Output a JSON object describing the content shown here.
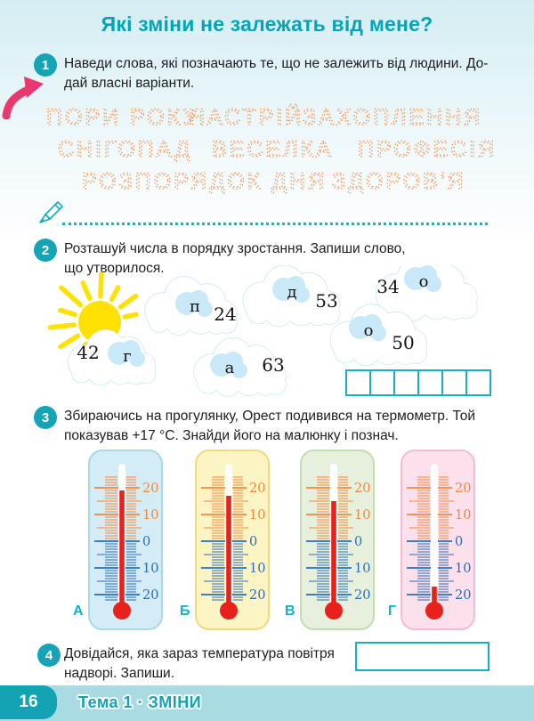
{
  "header": {
    "title": "Які зміни не залежать від мене?"
  },
  "task1": {
    "badge": "1",
    "line1": "Наведи слова, які позначають те, що не залежить від людини. До-",
    "line2": "дай власні варіанти.",
    "words": [
      "ПОРИ РОКУ",
      "НАСТРІЙ",
      "ЗАХОПЛЕННЯ",
      "СНІГОПАД",
      "ВЕСЕЛКА",
      "ПРОФЕСІЯ",
      "РОЗПОРЯДОК ДНЯ",
      "ЗДОРОВ'Я"
    ]
  },
  "task2": {
    "badge": "2",
    "line1": "Розташуй числа в порядку зростання. Запиши слово,",
    "line2": "що утворилося.",
    "clouds": [
      {
        "letter": "п",
        "number": "24"
      },
      {
        "letter": "д",
        "number": "53"
      },
      {
        "letter": "о",
        "number": "34"
      },
      {
        "letter": "о",
        "number": "50"
      },
      {
        "letter": "г",
        "number": "42"
      },
      {
        "letter": "а",
        "number": "63"
      }
    ],
    "answer_cells": 6
  },
  "task3": {
    "badge": "3",
    "line1": "Збираючись на прогулянку, Орест подивився на термометр. Той",
    "line2": "показував +17 °С. Знайди його на малюнку і познач.",
    "scale_labels": [
      "20",
      "10",
      "0",
      "10",
      "20"
    ],
    "thermometers": [
      {
        "label": "А",
        "value": 19
      },
      {
        "label": "Б",
        "value": 17
      },
      {
        "label": "В",
        "value": 15
      },
      {
        "label": "Г",
        "value": -17
      }
    ]
  },
  "task4": {
    "badge": "4",
    "line1": "Довідайся, яка зараз температура повітря",
    "line2": "надворі. Запиши."
  },
  "footer": {
    "page_number": "16",
    "theme": "Тема 1 · ЗМІНИ"
  },
  "colors": {
    "accent_teal": "#14a4b6",
    "title_teal": "#00a6b8",
    "dotted_orange": "#f49a5e",
    "scale_orange": "#f0883c",
    "scale_blue": "#2a6db4",
    "thermo_red": "#e8211d",
    "footer_bar": "#a8dce2"
  }
}
